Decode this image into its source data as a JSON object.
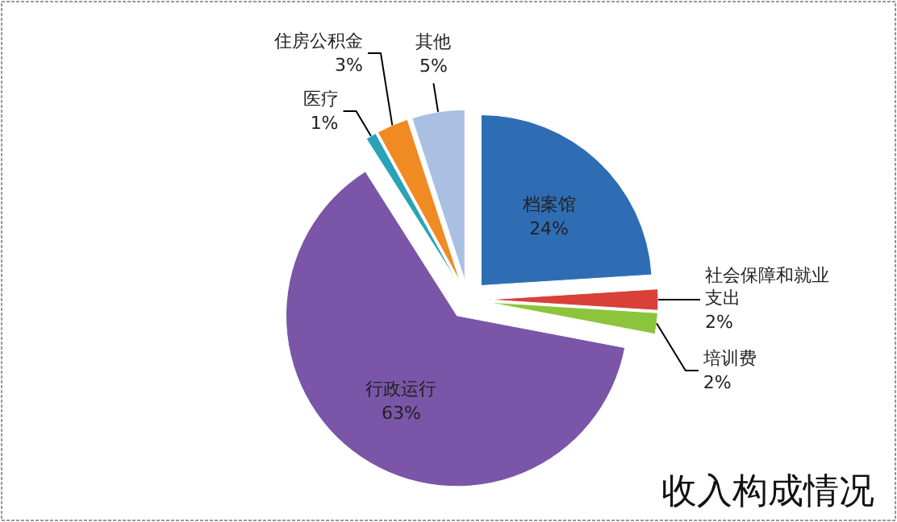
{
  "chart_data": {
    "type": "pie",
    "title": "收入构成情况",
    "categories": [
      "档案馆",
      "社会保障和就业支出",
      "培训费",
      "行政运行",
      "医疗",
      "住房公积金",
      "其他"
    ],
    "values": [
      24,
      2,
      2,
      63,
      1,
      3,
      5
    ],
    "value_labels": [
      "24%",
      "2%",
      "2%",
      "63%",
      "1%",
      "3%",
      "5%"
    ],
    "colors": [
      "#2e6db4",
      "#d9403a",
      "#8cc43c",
      "#7a55a8",
      "#2aa3b8",
      "#f08a22",
      "#a9c0e3"
    ]
  }
}
